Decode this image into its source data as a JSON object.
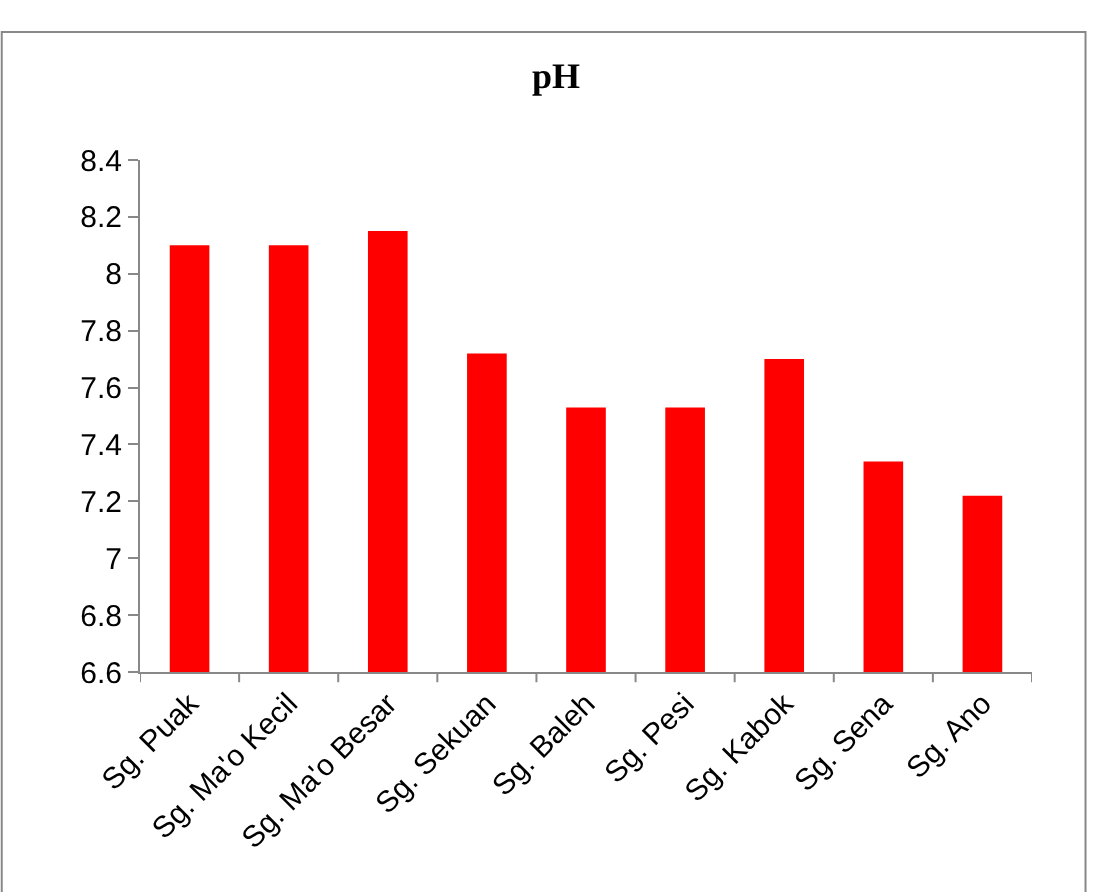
{
  "chart_data": {
    "type": "bar",
    "title": "pH",
    "categories": [
      "Sg. Puak",
      "Sg. Ma'o Kecil",
      "Sg. Ma'o Besar",
      "Sg. Sekuan",
      "Sg. Baleh",
      "Sg. Pesi",
      "Sg. Kabok",
      "Sg. Sena",
      "Sg. Ano"
    ],
    "values": [
      8.1,
      8.1,
      8.15,
      7.72,
      7.53,
      7.53,
      7.7,
      7.34,
      7.22
    ],
    "color": "#ff0000",
    "ylim": [
      6.6,
      8.4
    ],
    "yticks": [
      6.6,
      6.8,
      7,
      7.2,
      7.4,
      7.6,
      7.8,
      8,
      8.2,
      8.4
    ]
  }
}
